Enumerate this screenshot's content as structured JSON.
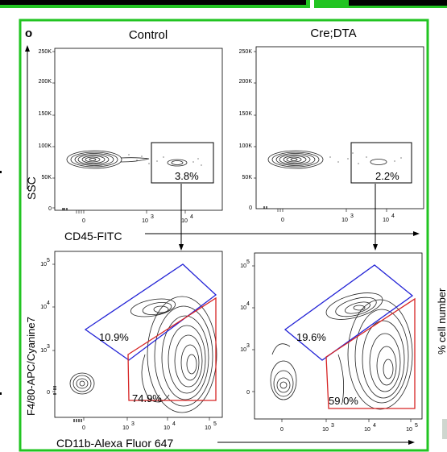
{
  "panel_letter": "o",
  "columns": [
    "Control",
    "Cre;DTA"
  ],
  "top_axis": {
    "ylabel": "SSC",
    "xlabel": "CD45-FITC",
    "yticks": [
      "250K",
      "200K",
      "150K",
      "100K",
      "50K",
      "0"
    ],
    "xticks": [
      "0",
      "10",
      "10"
    ]
  },
  "bottom_axis": {
    "ylabel": "F4/80-APC/Cyanine7",
    "xlabel": "CD11b-Alexa Fluor 647",
    "yticks": [
      "10",
      "10",
      "10",
      "0"
    ],
    "xticks": [
      "0",
      "10",
      "10",
      "10"
    ]
  },
  "gates": {
    "control_cd45": "3.8%",
    "dta_cd45": "2.2%",
    "control_f480": "10.9%",
    "control_cd11b": "74.9%",
    "dta_f480": "19.6%",
    "dta_cd11b": "59.0%"
  },
  "right_edge_label": "% cell number",
  "colors": {
    "frame": "#22c422",
    "blue_gate": "#2424d6",
    "red_gate": "#d62424",
    "bar": "#000000"
  }
}
